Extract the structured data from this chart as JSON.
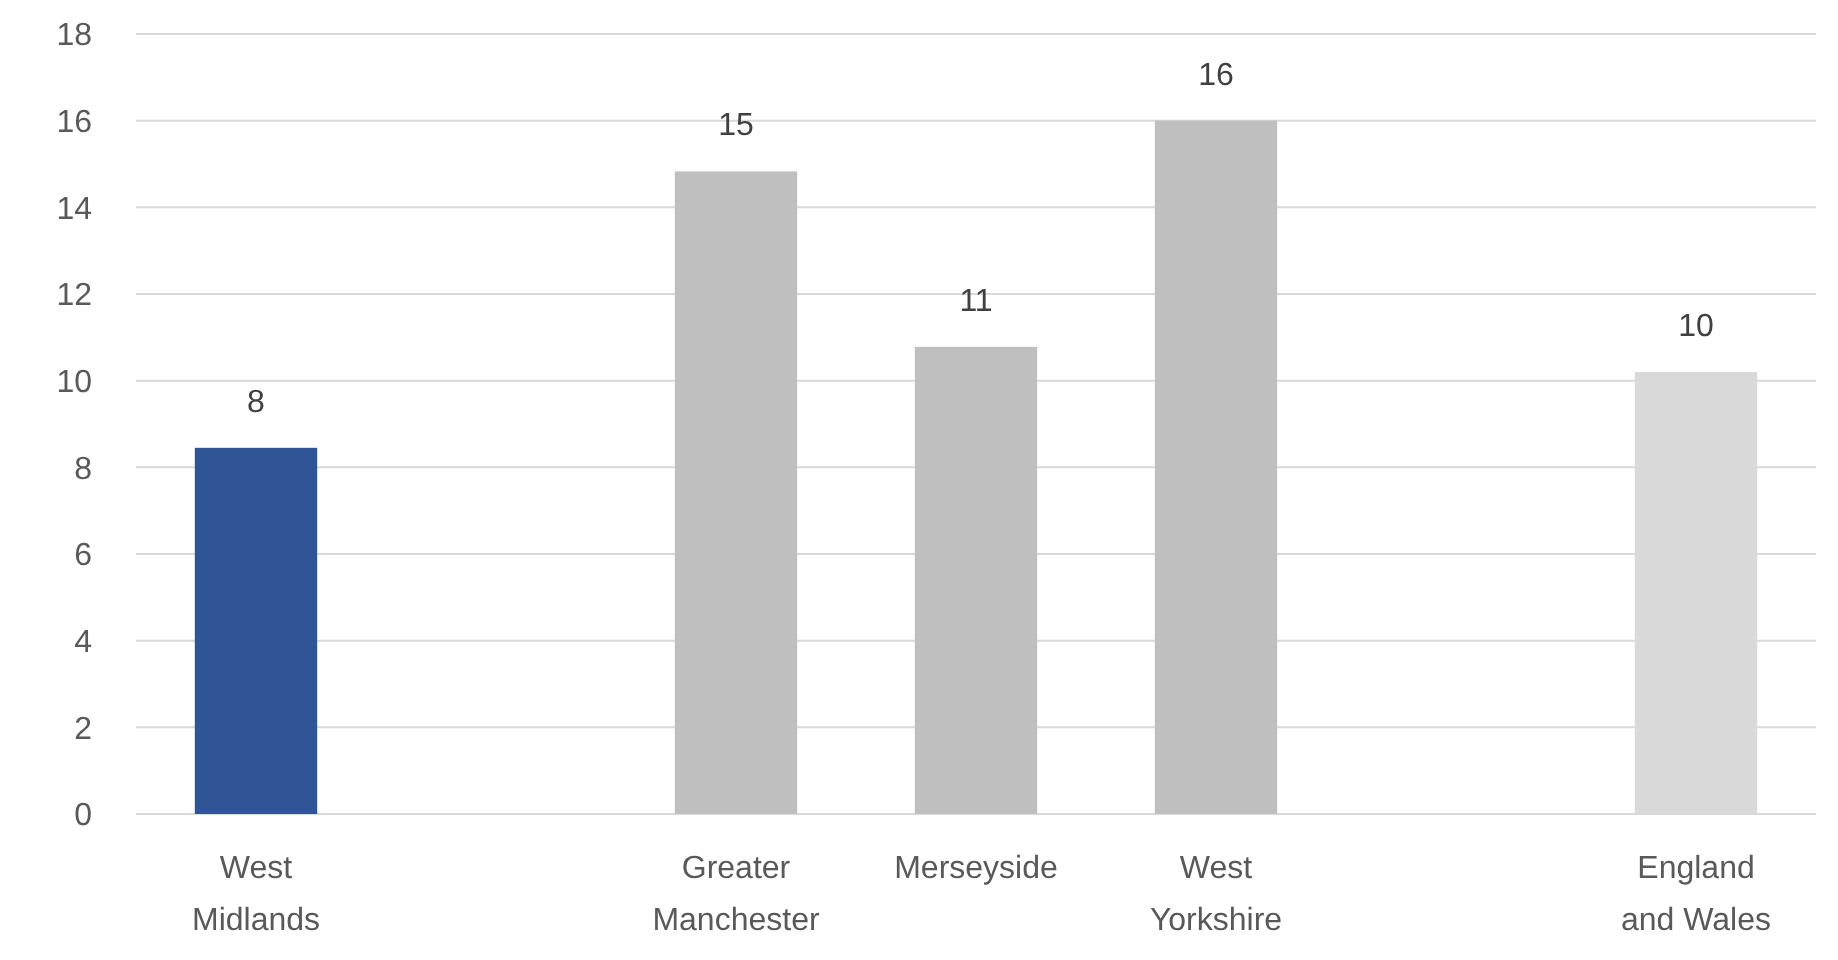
{
  "chart_data": {
    "type": "bar",
    "categories": [
      "West\nMidlands",
      null,
      "Greater\nManchester",
      "Merseyside",
      "West\nYorkshire",
      null,
      "England\nand Wales"
    ],
    "values": [
      8.45,
      null,
      14.83,
      10.78,
      16.0,
      null,
      10.2
    ],
    "colors": [
      "#2f5597",
      null,
      "#bfbfbf",
      "#bfbfbf",
      "#bfbfbf",
      null,
      "#d9d9d9"
    ],
    "value_labels": [
      "8",
      null,
      "15",
      "11",
      "16",
      null,
      "10"
    ],
    "ylim": [
      0,
      18
    ],
    "yticks": [
      0,
      2,
      4,
      6,
      8,
      10,
      12,
      14,
      16,
      18
    ],
    "grid": "y"
  }
}
